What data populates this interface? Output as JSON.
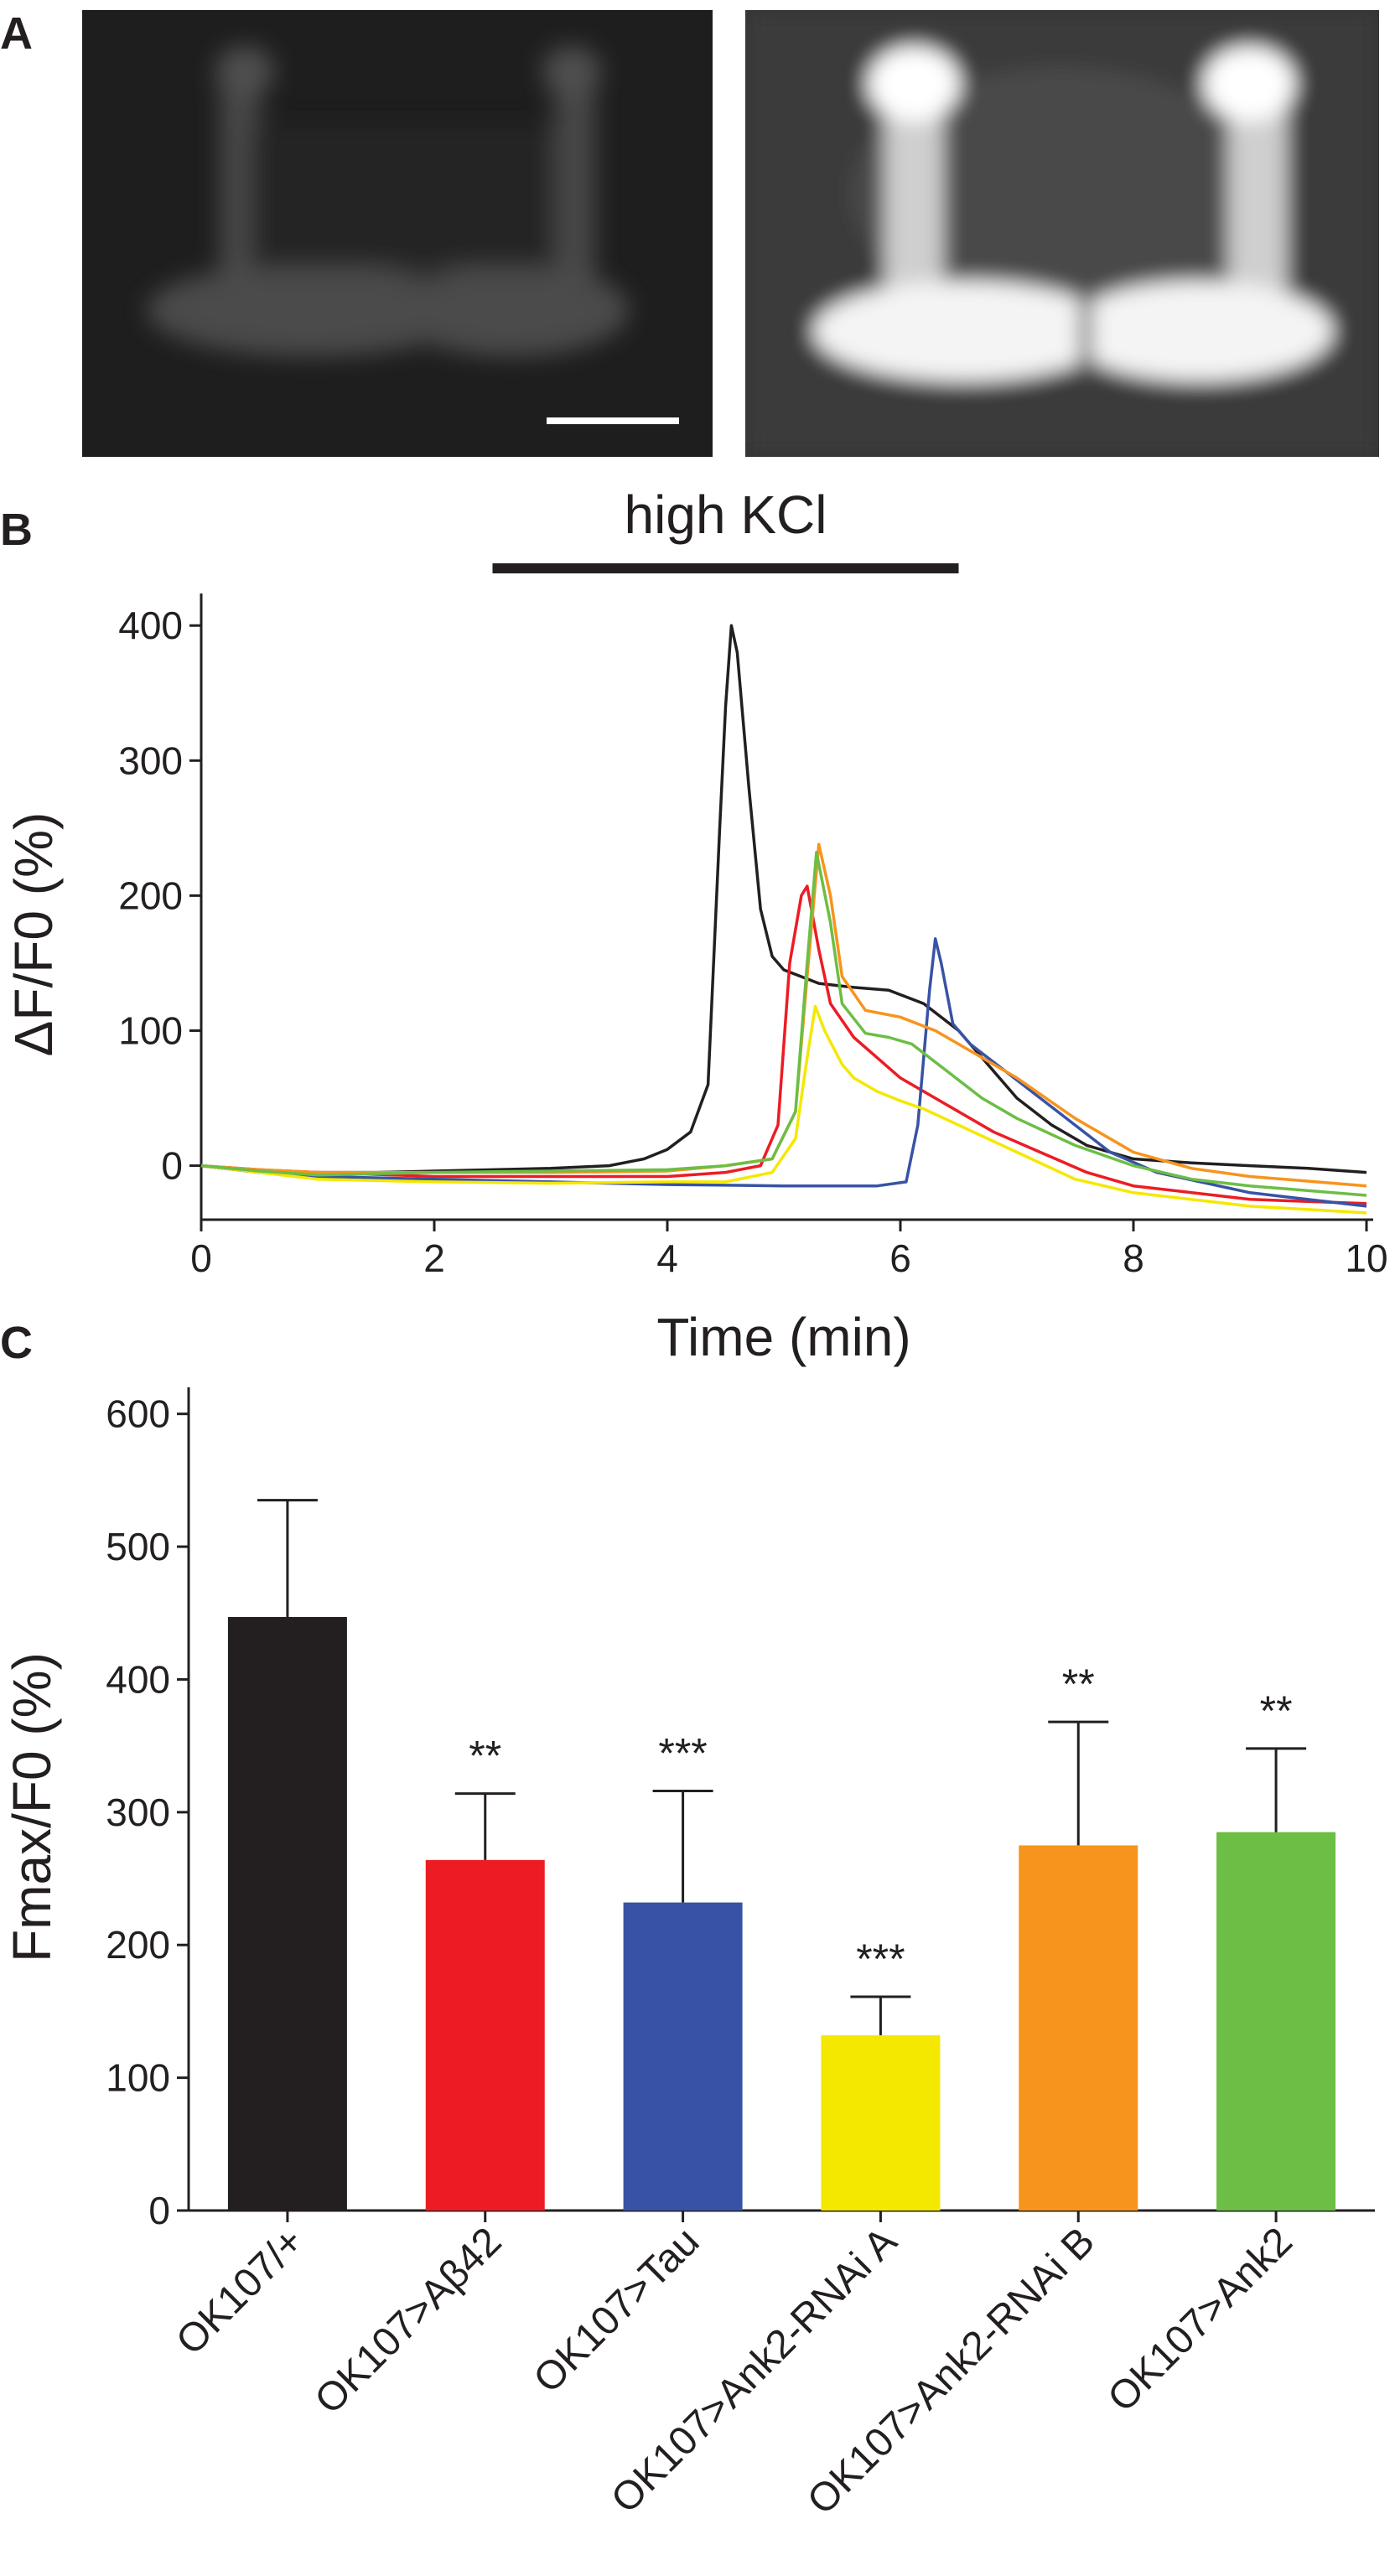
{
  "panels": {
    "a": "A",
    "b": "B",
    "c": "C"
  },
  "images": {
    "left": {
      "description_name": "baseline-fluorescence"
    },
    "right": {
      "description_name": "peak-fluorescence"
    }
  },
  "chart_data": [
    {
      "type": "line",
      "stimulus_label": "high KCl",
      "stimulus_range": [
        2.5,
        6.5
      ],
      "xlabel": "Time (min)",
      "ylabel": "ΔF/F0 (%)",
      "xlim": [
        0,
        10
      ],
      "ylim": [
        -40,
        420
      ],
      "xticks": [
        0,
        2,
        4,
        6,
        8,
        10
      ],
      "yticks": [
        0,
        100,
        200,
        300,
        400
      ],
      "series": [
        {
          "name": "OK107/+",
          "color": "#231f20",
          "points": [
            [
              0,
              0
            ],
            [
              0.5,
              -5
            ],
            [
              1,
              -5
            ],
            [
              1.5,
              -5
            ],
            [
              2,
              -4
            ],
            [
              2.5,
              -3
            ],
            [
              3,
              -2
            ],
            [
              3.5,
              0
            ],
            [
              3.8,
              5
            ],
            [
              4,
              12
            ],
            [
              4.2,
              25
            ],
            [
              4.35,
              60
            ],
            [
              4.45,
              250
            ],
            [
              4.5,
              340
            ],
            [
              4.55,
              400
            ],
            [
              4.6,
              380
            ],
            [
              4.7,
              280
            ],
            [
              4.8,
              190
            ],
            [
              4.9,
              155
            ],
            [
              5,
              145
            ],
            [
              5.3,
              135
            ],
            [
              5.6,
              132
            ],
            [
              5.9,
              130
            ],
            [
              6.2,
              120
            ],
            [
              6.5,
              100
            ],
            [
              6.8,
              70
            ],
            [
              7,
              50
            ],
            [
              7.3,
              30
            ],
            [
              7.6,
              15
            ],
            [
              8,
              5
            ],
            [
              8.5,
              2
            ],
            [
              9,
              0
            ],
            [
              9.5,
              -2
            ],
            [
              10,
              -5
            ]
          ]
        },
        {
          "name": "OK107>Aβ42",
          "color": "#ed1c24",
          "points": [
            [
              0,
              0
            ],
            [
              0.5,
              -3
            ],
            [
              1,
              -5
            ],
            [
              2,
              -8
            ],
            [
              3,
              -8
            ],
            [
              4,
              -8
            ],
            [
              4.5,
              -5
            ],
            [
              4.8,
              0
            ],
            [
              4.95,
              30
            ],
            [
              5.05,
              150
            ],
            [
              5.15,
              200
            ],
            [
              5.2,
              207
            ],
            [
              5.3,
              160
            ],
            [
              5.4,
              120
            ],
            [
              5.6,
              95
            ],
            [
              5.8,
              80
            ],
            [
              6,
              65
            ],
            [
              6.4,
              45
            ],
            [
              6.8,
              25
            ],
            [
              7.2,
              10
            ],
            [
              7.6,
              -5
            ],
            [
              8,
              -15
            ],
            [
              9,
              -25
            ],
            [
              10,
              -28
            ]
          ]
        },
        {
          "name": "OK107>Tau",
          "color": "#3853a5",
          "points": [
            [
              0,
              0
            ],
            [
              0.5,
              -5
            ],
            [
              1,
              -8
            ],
            [
              2,
              -10
            ],
            [
              3,
              -12
            ],
            [
              4,
              -14
            ],
            [
              5,
              -15
            ],
            [
              5.8,
              -15
            ],
            [
              6.05,
              -12
            ],
            [
              6.15,
              30
            ],
            [
              6.25,
              130
            ],
            [
              6.3,
              168
            ],
            [
              6.35,
              150
            ],
            [
              6.45,
              105
            ],
            [
              6.6,
              90
            ],
            [
              6.9,
              70
            ],
            [
              7.2,
              50
            ],
            [
              7.5,
              30
            ],
            [
              7.8,
              10
            ],
            [
              8.2,
              -5
            ],
            [
              9,
              -20
            ],
            [
              10,
              -30
            ]
          ]
        },
        {
          "name": "OK107>Ank2-RNAi A",
          "color": "#f5e800",
          "points": [
            [
              0,
              0
            ],
            [
              0.5,
              -5
            ],
            [
              1,
              -10
            ],
            [
              2,
              -12
            ],
            [
              3,
              -13
            ],
            [
              4,
              -12
            ],
            [
              4.5,
              -12
            ],
            [
              4.9,
              -5
            ],
            [
              5.1,
              20
            ],
            [
              5.2,
              80
            ],
            [
              5.27,
              118
            ],
            [
              5.35,
              100
            ],
            [
              5.5,
              75
            ],
            [
              5.6,
              65
            ],
            [
              5.8,
              55
            ],
            [
              6,
              48
            ],
            [
              6.2,
              42
            ],
            [
              6.5,
              30
            ],
            [
              7,
              10
            ],
            [
              7.5,
              -10
            ],
            [
              8,
              -20
            ],
            [
              9,
              -30
            ],
            [
              10,
              -35
            ]
          ]
        },
        {
          "name": "OK107>Ank2-RNAi B",
          "color": "#f7941d",
          "points": [
            [
              0,
              0
            ],
            [
              0.5,
              -3
            ],
            [
              1,
              -5
            ],
            [
              2,
              -5
            ],
            [
              3,
              -5
            ],
            [
              4,
              -4
            ],
            [
              4.5,
              0
            ],
            [
              4.9,
              5
            ],
            [
              5.1,
              40
            ],
            [
              5.2,
              140
            ],
            [
              5.3,
              238
            ],
            [
              5.4,
              200
            ],
            [
              5.5,
              140
            ],
            [
              5.7,
              115
            ],
            [
              6,
              110
            ],
            [
              6.3,
              100
            ],
            [
              6.6,
              85
            ],
            [
              7,
              65
            ],
            [
              7.5,
              35
            ],
            [
              8,
              10
            ],
            [
              8.5,
              -2
            ],
            [
              9,
              -8
            ],
            [
              10,
              -15
            ]
          ]
        },
        {
          "name": "OK107>Ank2",
          "color": "#6cbe45",
          "points": [
            [
              0,
              0
            ],
            [
              0.5,
              -4
            ],
            [
              1,
              -7
            ],
            [
              2,
              -5
            ],
            [
              3,
              -4
            ],
            [
              4,
              -3
            ],
            [
              4.5,
              0
            ],
            [
              4.9,
              5
            ],
            [
              5.1,
              40
            ],
            [
              5.2,
              150
            ],
            [
              5.28,
              232
            ],
            [
              5.4,
              180
            ],
            [
              5.5,
              120
            ],
            [
              5.7,
              98
            ],
            [
              5.9,
              95
            ],
            [
              6.1,
              90
            ],
            [
              6.4,
              70
            ],
            [
              6.7,
              50
            ],
            [
              7,
              35
            ],
            [
              7.5,
              15
            ],
            [
              8,
              0
            ],
            [
              8.5,
              -10
            ],
            [
              9,
              -15
            ],
            [
              10,
              -22
            ]
          ]
        }
      ]
    },
    {
      "type": "bar",
      "ylabel": "Fmax/F0 (%)",
      "ylim": [
        0,
        620
      ],
      "yticks": [
        0,
        100,
        200,
        300,
        400,
        500,
        600
      ],
      "categories": [
        "OK107/+",
        "OK107>Aβ42",
        "OK107>Tau",
        "OK107>Ank2-RNAi A",
        "OK107>Ank2-RNAi B",
        "OK107>Ank2"
      ],
      "values": [
        447,
        264,
        232,
        132,
        275,
        285
      ],
      "errors": [
        88,
        50,
        84,
        29,
        93,
        63
      ],
      "significance": [
        "",
        "**",
        "***",
        "***",
        "**",
        "**"
      ],
      "colors": [
        "#231f20",
        "#ed1c24",
        "#3853a5",
        "#f5e800",
        "#f7941d",
        "#6cbe45"
      ]
    }
  ]
}
